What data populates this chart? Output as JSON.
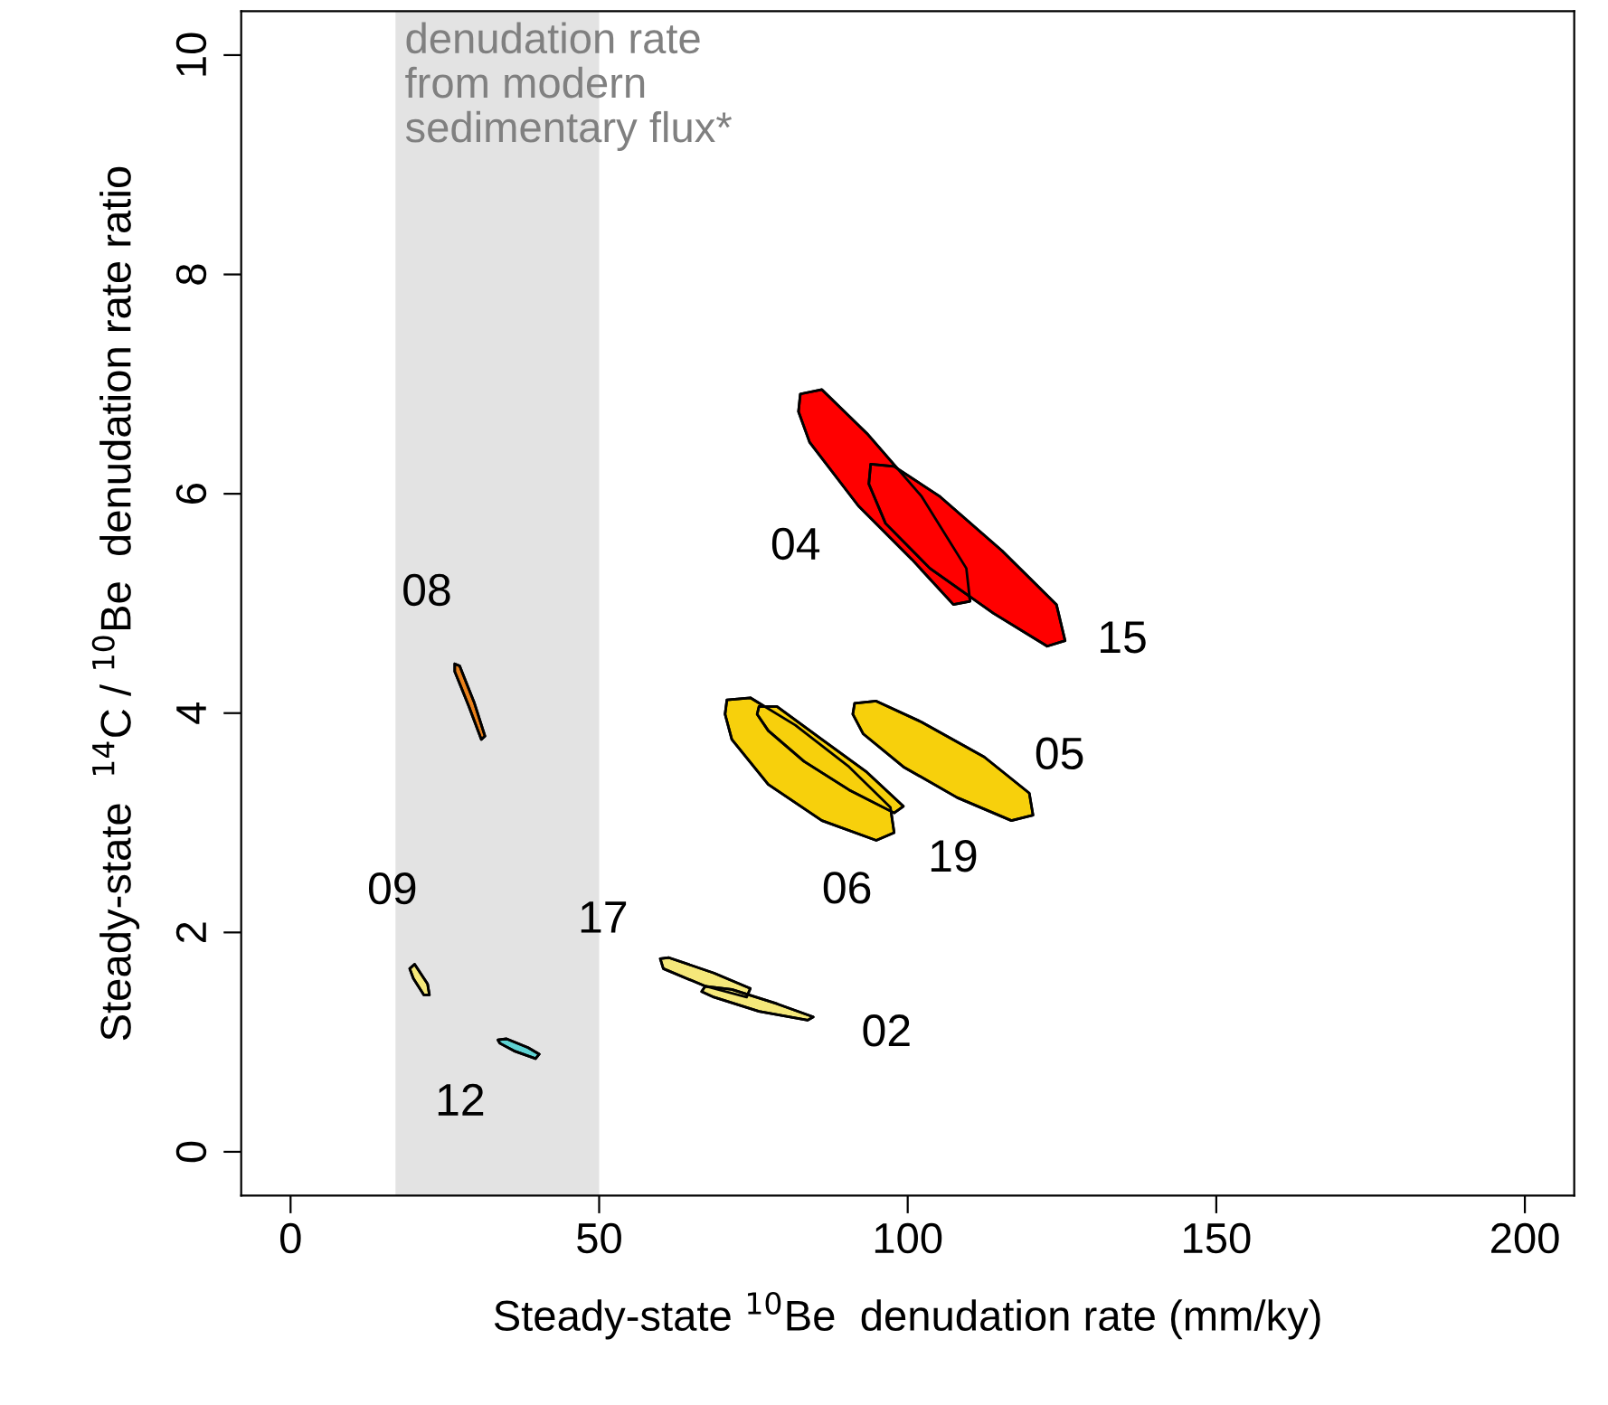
{
  "chart_data": {
    "type": "area",
    "xlabel": "Steady-state $^{10}$Be  denudation rate (mm/ky)",
    "ylabel": "Steady-state  $^{14}$C / $^{10}$Be  denudation rate ratio",
    "xlim": [
      -8,
      208
    ],
    "ylim": [
      -0.4,
      10.4
    ],
    "xticks": [
      0,
      50,
      100,
      150,
      200
    ],
    "yticks": [
      0,
      2,
      4,
      6,
      8,
      10
    ],
    "grid": false,
    "legend": false,
    "bands": [
      {
        "axis": "x",
        "from": 17,
        "to": 50,
        "label": "denudation rate\nfrom modern\nsedimentary flux*",
        "color": "#e3e3e3"
      }
    ],
    "series": [
      {
        "color": "#ff0000",
        "x": [
          82.6,
          86.1,
          93.4,
          102.2,
          109.5,
          110.1,
          107.4,
          100.7,
          92.0,
          84.1,
          82.3
        ],
        "values": [
          6.91,
          6.95,
          6.55,
          5.98,
          5.32,
          5.02,
          4.99,
          5.4,
          5.89,
          6.47,
          6.75
        ]
      },
      {
        "color": "#ff0000",
        "x": [
          94.0,
          97.8,
          105.1,
          115.3,
          124.1,
          125.5,
          122.6,
          113.9,
          103.6,
          96.4,
          93.7
        ],
        "values": [
          6.27,
          6.25,
          5.98,
          5.48,
          4.99,
          4.66,
          4.61,
          4.91,
          5.32,
          5.73,
          6.09
        ]
      },
      {
        "color": "#f7d00c",
        "x": [
          70.7,
          74.5,
          81.8,
          90.5,
          97.2,
          97.8,
          94.9,
          86.1,
          77.4,
          71.5,
          70.4
        ],
        "values": [
          4.12,
          4.14,
          3.89,
          3.51,
          3.14,
          2.91,
          2.84,
          3.02,
          3.35,
          3.76,
          3.99
        ]
      },
      {
        "color": "#f7d00c",
        "x": [
          75.9,
          78.8,
          86.1,
          93.4,
          99.3,
          97.8,
          90.5,
          83.2,
          77.4,
          75.6
        ],
        "values": [
          4.06,
          4.06,
          3.76,
          3.46,
          3.15,
          3.09,
          3.3,
          3.56,
          3.84,
          3.99
        ]
      },
      {
        "color": "#f7d00c",
        "x": [
          91.4,
          94.9,
          102.2,
          112.4,
          119.7,
          120.3,
          116.8,
          108.0,
          99.3,
          92.8,
          91.1
        ],
        "values": [
          4.09,
          4.11,
          3.92,
          3.6,
          3.27,
          3.07,
          3.02,
          3.23,
          3.51,
          3.81,
          3.99
        ]
      },
      {
        "color": "#e8801a",
        "x": [
          26.6,
          27.4,
          29.8,
          31.5,
          30.9,
          28.9,
          26.6
        ],
        "values": [
          4.45,
          4.43,
          4.09,
          3.79,
          3.76,
          4.06,
          4.38
        ]
      },
      {
        "color": "#f5e87a",
        "x": [
          19.3,
          20.1,
          22.2,
          22.5,
          21.6,
          19.9
        ],
        "values": [
          1.67,
          1.71,
          1.53,
          1.43,
          1.43,
          1.58
        ]
      },
      {
        "color": "#5fd3d3",
        "x": [
          33.6,
          35.0,
          38.5,
          40.3,
          39.7,
          36.2,
          33.9
        ],
        "values": [
          1.02,
          1.03,
          0.95,
          0.89,
          0.85,
          0.92,
          0.99
        ]
      },
      {
        "color": "#f5e87a",
        "x": [
          59.9,
          61.3,
          68.6,
          74.5,
          73.9,
          67.2,
          60.4
        ],
        "values": [
          1.76,
          1.77,
          1.63,
          1.49,
          1.41,
          1.51,
          1.67
        ]
      },
      {
        "color": "#f5e87a",
        "x": [
          67.2,
          71.5,
          78.8,
          84.7,
          83.8,
          75.9,
          68.6,
          66.6
        ],
        "values": [
          1.51,
          1.48,
          1.35,
          1.23,
          1.2,
          1.28,
          1.41,
          1.46
        ]
      }
    ],
    "annotations": [
      {
        "text": "04",
        "x": 92.0,
        "y": 5.89
      },
      {
        "text": "15",
        "x": 124.1,
        "y": 4.99
      },
      {
        "text": "08",
        "x": 26.6,
        "y": 4.45
      },
      {
        "text": "05",
        "x": 112.4,
        "y": 3.6
      },
      {
        "text": "06",
        "x": 86.1,
        "y": 3.02
      },
      {
        "text": "19",
        "x": 97.8,
        "y": 3.09
      },
      {
        "text": "09",
        "x": 20.1,
        "y": 1.71
      },
      {
        "text": "17",
        "x": 61.3,
        "y": 1.77
      },
      {
        "text": "02",
        "x": 84.7,
        "y": 1.23
      },
      {
        "text": "12",
        "x": 36.2,
        "y": 0.92
      }
    ]
  }
}
